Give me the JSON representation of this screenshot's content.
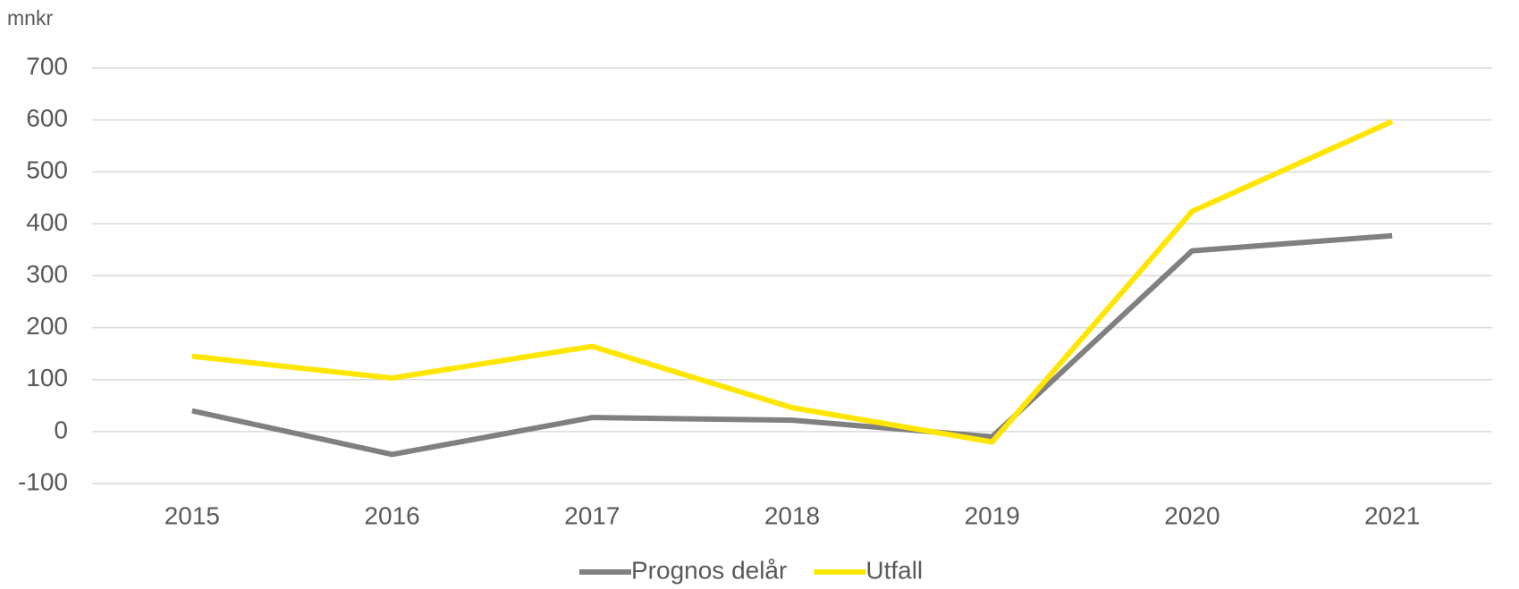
{
  "chart_data": {
    "type": "line",
    "y_label": "mnkr",
    "categories": [
      "2015",
      "2016",
      "2017",
      "2018",
      "2019",
      "2020",
      "2021"
    ],
    "series": [
      {
        "name": "Prognos delår",
        "color": "#808080",
        "values": [
          40,
          -44,
          27,
          22,
          -10,
          348,
          377
        ]
      },
      {
        "name": "Utfall",
        "color": "#ffe600",
        "values": [
          145,
          103,
          164,
          46,
          -20,
          424,
          597
        ]
      }
    ],
    "ylim": [
      -100,
      700
    ],
    "yticks": [
      -100,
      0,
      100,
      200,
      300,
      400,
      500,
      600,
      700
    ],
    "grid": true,
    "legend": "bottom"
  }
}
